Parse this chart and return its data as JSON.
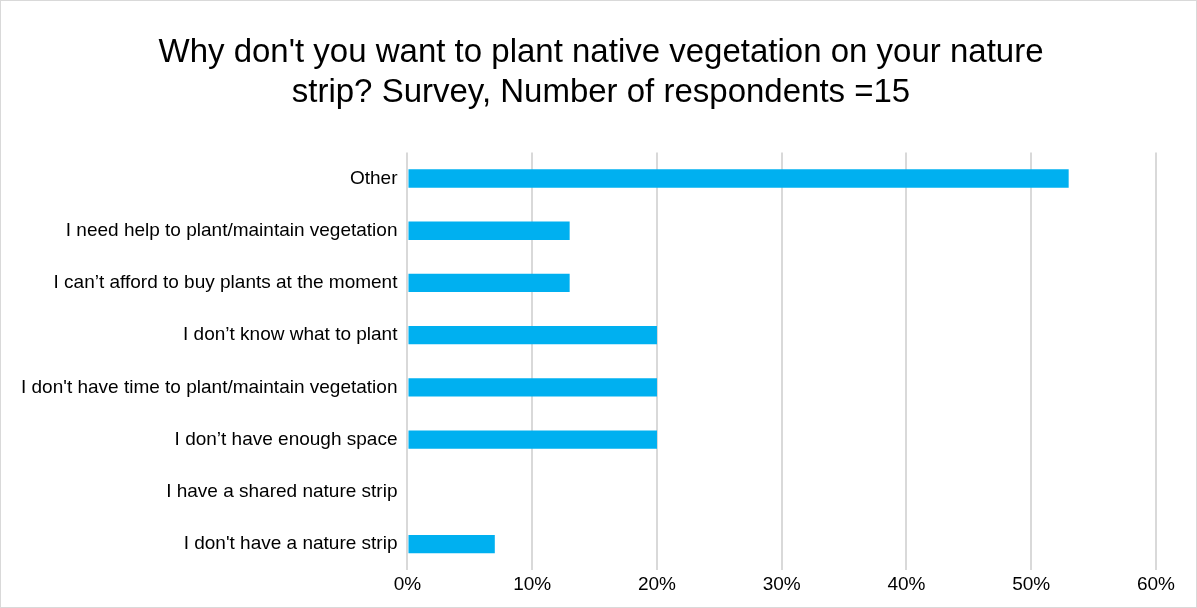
{
  "chart_data": {
    "type": "bar",
    "orientation": "horizontal",
    "title": "Why don't you want to plant native vegetation on your nature strip? Survey, Number of respondents =15",
    "categories": [
      "Other",
      "I need help to plant/maintain vegetation",
      "I can’t afford to buy plants at the moment",
      "I don’t know what to plant",
      "I don't have time to plant/maintain vegetation",
      "I don’t have enough space",
      "I have a shared nature strip",
      "I don't have a nature strip"
    ],
    "values": [
      53,
      13,
      13,
      20,
      20,
      20,
      0,
      7
    ],
    "color": "#00b0f0",
    "xlim": [
      0,
      60
    ],
    "xticks": [
      {
        "value": 0,
        "label": "0%"
      },
      {
        "value": 10,
        "label": "10%"
      },
      {
        "value": 20,
        "label": "20%"
      },
      {
        "value": 30,
        "label": "30%"
      },
      {
        "value": 40,
        "label": "40%"
      },
      {
        "value": 50,
        "label": "50%"
      },
      {
        "value": 60,
        "label": "60%"
      }
    ],
    "grid": "x",
    "legend": false
  }
}
